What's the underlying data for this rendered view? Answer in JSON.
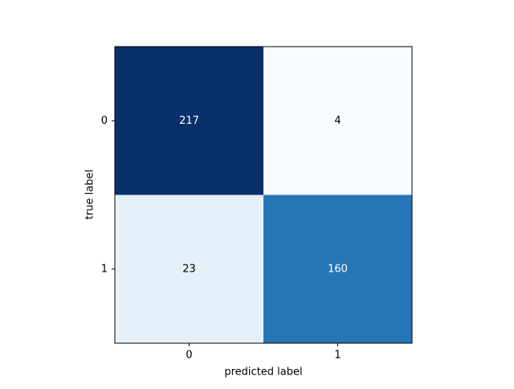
{
  "chart_data": {
    "type": "heatmap",
    "xlabel": "predicted label",
    "ylabel": "true label",
    "x_categories": [
      "0",
      "1"
    ],
    "y_categories": [
      "0",
      "1"
    ],
    "values": [
      [
        217,
        4
      ],
      [
        23,
        160
      ]
    ],
    "colormap": [
      "#f7fbff",
      "#deebf7",
      "#c6dbef",
      "#9ecae1",
      "#6baed6",
      "#4292c6",
      "#2171b5",
      "#08519c",
      "#08306b"
    ],
    "text_colors": [
      "#000000",
      "#ffffff"
    ]
  }
}
